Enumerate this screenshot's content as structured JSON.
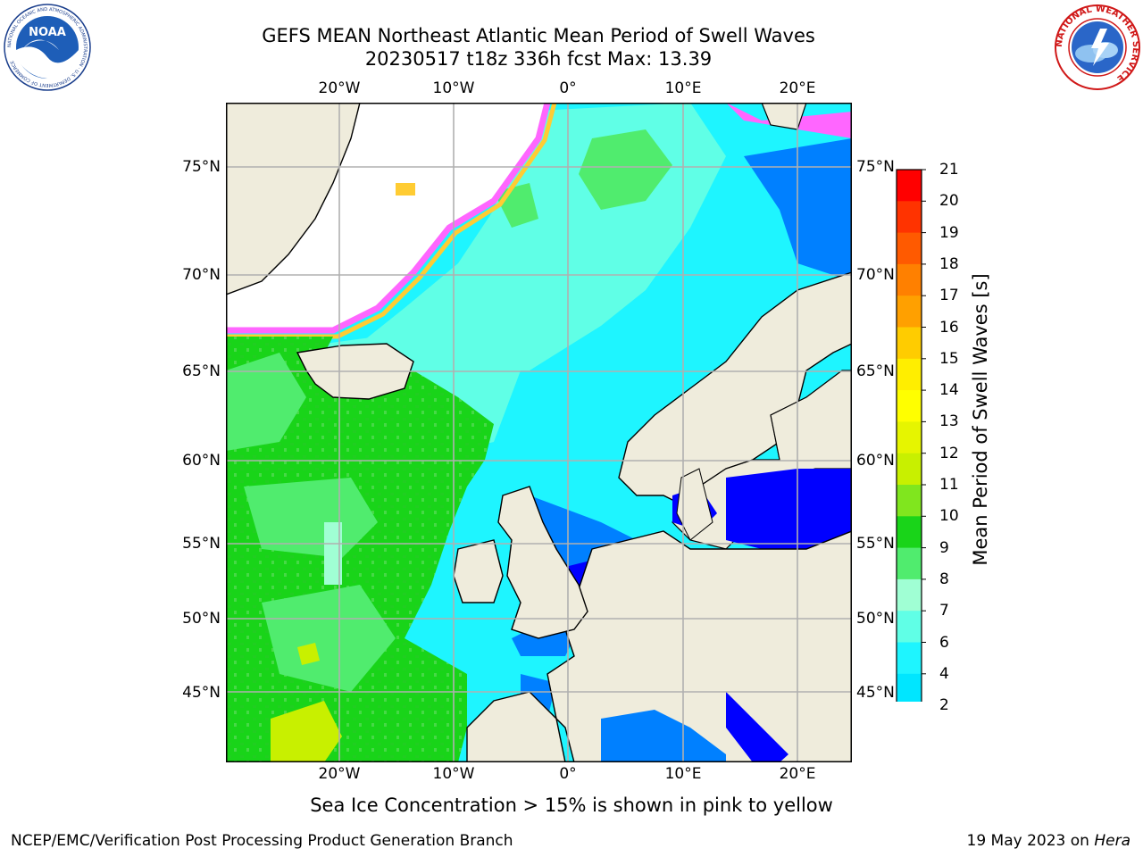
{
  "title": {
    "line1": "GEFS MEAN Northeast Atlantic Mean Period of Swell Waves",
    "line2": "20230517 t18z 336h fcst   Max: 13.39"
  },
  "logos": {
    "noaa": {
      "text": "NOAA",
      "ring_text": "NATIONAL OCEANIC AND ATMOSPHERIC ADMINISTRATION · U.S. DEPARTMENT OF COMMERCE"
    },
    "nws": {
      "ring_text": "NATIONAL WEATHER SERVICE"
    }
  },
  "map": {
    "lon_ticks": [
      "20°W",
      "10°W",
      "0°",
      "10°E",
      "20°E"
    ],
    "lat_ticks": [
      "75°N",
      "70°N",
      "65°N",
      "60°N",
      "55°N",
      "50°N",
      "45°N"
    ],
    "colors": {
      "land": "#efecdc",
      "ice_free_white": "#ffffff",
      "grid": "#b0b0b0",
      "coast": "#000000"
    }
  },
  "colorbar": {
    "label": "Mean Period of Swell Waves [s]",
    "ticks": [
      "21",
      "20",
      "19",
      "18",
      "17",
      "16",
      "15",
      "14",
      "13",
      "12",
      "11",
      "10",
      "9",
      "8",
      "7",
      "6",
      "4",
      "2"
    ],
    "colors_top_to_bottom": [
      "#ff0000",
      "#ff3300",
      "#ff5a00",
      "#ff8000",
      "#ffa000",
      "#ffcc00",
      "#ffee00",
      "#ffff00",
      "#e6f500",
      "#c8f000",
      "#80e61e",
      "#19d419",
      "#50ec6e",
      "#a0ffd4",
      "#60ffe6",
      "#1ef5ff",
      "#00e6ff",
      "#0080ff"
    ],
    "extend_color": "#0000ff"
  },
  "footer": {
    "ice_note": "Sea Ice Concentration > 15% is shown in pink to yellow",
    "credit_left": "NCEP/EMC/Verification Post Processing Product Generation Branch",
    "credit_date": "19 May 2023 on ",
    "credit_machine": "Hera"
  }
}
